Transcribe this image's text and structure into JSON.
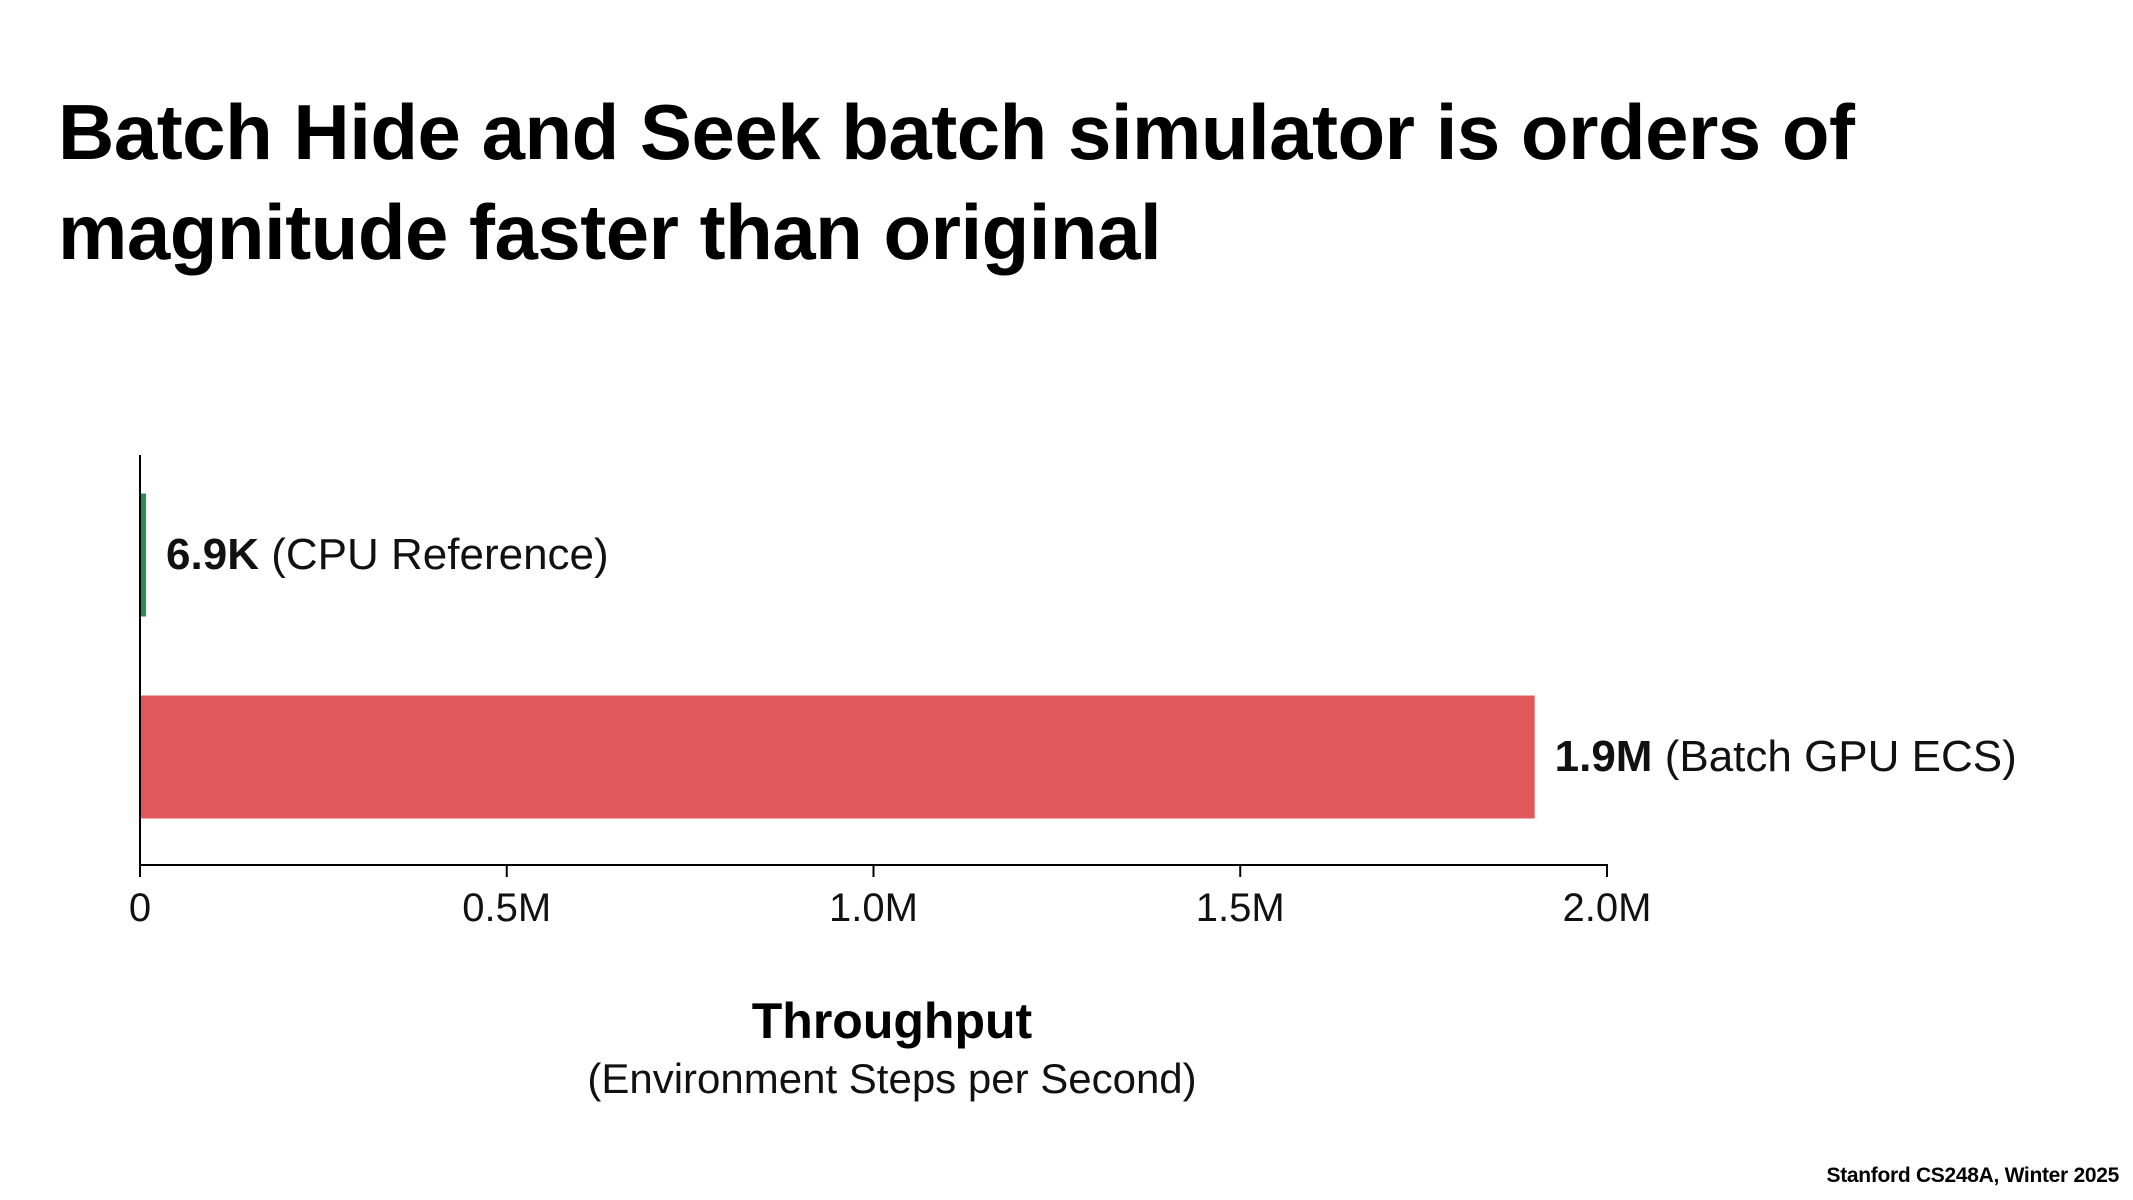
{
  "slide": {
    "title": "Batch Hide and Seek batch simulator is orders of magnitude faster than original",
    "footer": "Stanford CS248A, Winter 2025"
  },
  "chart_data": {
    "type": "bar",
    "orientation": "horizontal",
    "title": "",
    "categories": [
      "CPU Reference",
      "Batch GPU ECS"
    ],
    "values": [
      6900,
      1900000
    ],
    "value_labels": [
      "6.9K",
      "1.9M"
    ],
    "category_labels": [
      "(CPU Reference)",
      "(Batch GPU ECS)"
    ],
    "bar_colors": [
      "#2e8b57",
      "#e0585c"
    ],
    "xlim": [
      0,
      2000000
    ],
    "xticks": [
      0,
      500000,
      1000000,
      1500000,
      2000000
    ],
    "xtick_labels": [
      "0",
      "0.5M",
      "1.0M",
      "1.5M",
      "2.0M"
    ],
    "xlabel": "Throughput",
    "xlabel_sub": "(Environment Steps per Second)",
    "ylabel": "",
    "grid": false,
    "legend": false
  }
}
